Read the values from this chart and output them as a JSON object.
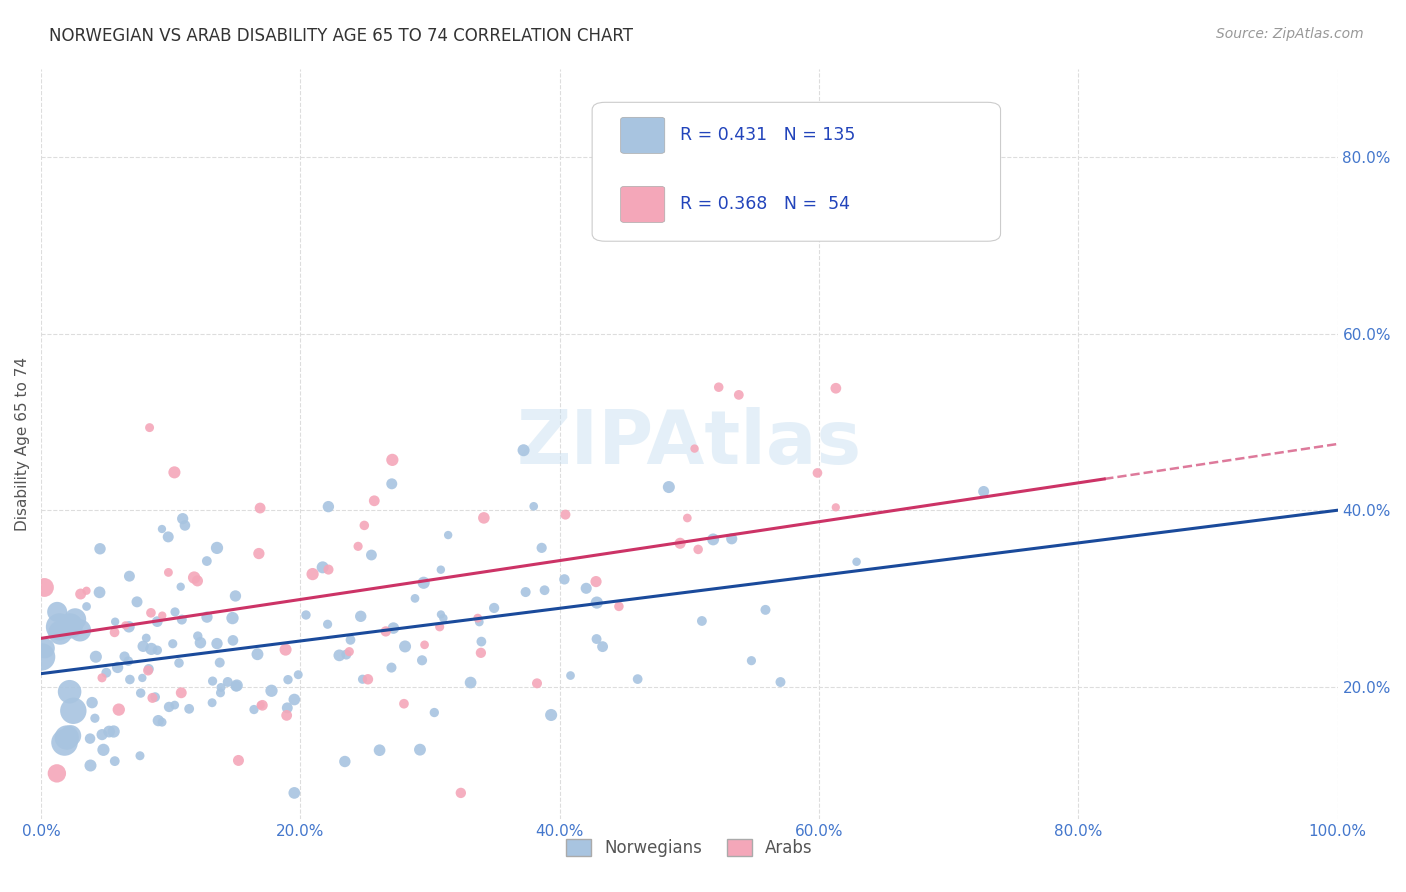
{
  "title": "NORWEGIAN VS ARAB DISABILITY AGE 65 TO 74 CORRELATION CHART",
  "source": "Source: ZipAtlas.com",
  "ylabel": "Disability Age 65 to 74",
  "xlim": [
    0,
    1.0
  ],
  "ylim": [
    0.05,
    0.9
  ],
  "xticks": [
    0.0,
    0.2,
    0.4,
    0.6,
    0.8,
    1.0
  ],
  "xticklabels": [
    "0.0%",
    "20.0%",
    "40.0%",
    "60.0%",
    "80.0%",
    "100.0%"
  ],
  "yticks": [
    0.2,
    0.4,
    0.6,
    0.8
  ],
  "yticklabels": [
    "20.0%",
    "40.0%",
    "60.0%",
    "80.0%"
  ],
  "norwegian_color": "#a8c4e0",
  "arab_color": "#f4a7b9",
  "norwegian_line_color": "#1a4a9b",
  "arab_line_color": "#cc3366",
  "norwegian_R": 0.431,
  "norwegian_N": 135,
  "arab_R": 0.368,
  "arab_N": 54,
  "legend_label_norwegian": "Norwegians",
  "legend_label_arab": "Arabs",
  "watermark": "ZIPAtlas",
  "background_color": "#ffffff",
  "grid_color": "#dddddd",
  "title_fontsize": 12,
  "axis_fontsize": 11,
  "tick_fontsize": 11,
  "source_fontsize": 10,
  "tick_color": "#4477cc",
  "nor_line_intercept": 0.215,
  "nor_line_slope": 0.185,
  "arab_line_intercept": 0.255,
  "arab_line_slope": 0.22,
  "arab_line_xmax": 0.82
}
